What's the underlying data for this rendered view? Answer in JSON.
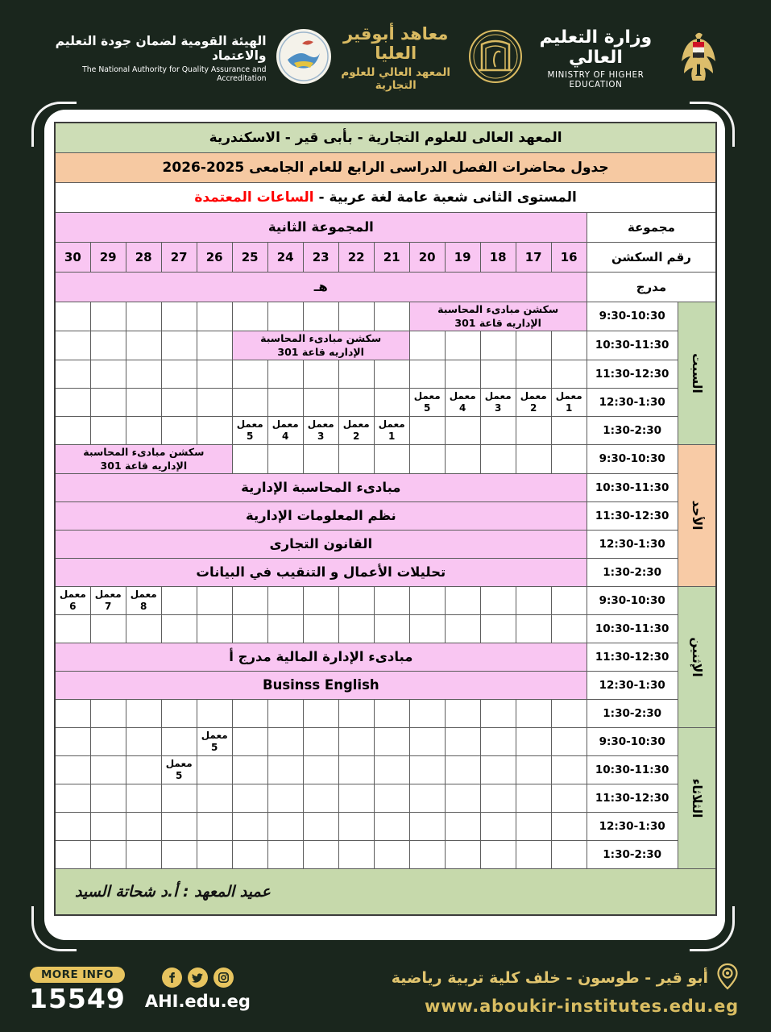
{
  "colors": {
    "background": "#1a261d",
    "pink_cell": "#f9c6f2",
    "green_band": "#cdddb6",
    "orange_band": "#f6c9a2",
    "day_green": "#c5dab0",
    "day_orange": "#f8cba6",
    "gold": "#d9ba62",
    "highlight_red": "#fe0000"
  },
  "header": {
    "naqaae": {
      "title_ar": "الهيئة القومية لضمان جودة التعليم والاعتماد",
      "title_en": "The National Authority for Quality Assurance and Accreditation"
    },
    "institute": {
      "title_ar": "معاهد أبوقير العليا",
      "subtitle_ar": "المعهد العالي للعلوم التجارية"
    },
    "ministry": {
      "title_ar": "وزارة التعليم العالي",
      "title_en": "MINISTRY OF HIGHER EDUCATION"
    }
  },
  "document": {
    "title1": "المعهد العالى للعلوم التجارية - بأبى قير - الاسكندرية",
    "title2": "جدول  محاضرات الفصل الدراسى الرابع  للعام الجامعى 2025-2026",
    "title3_main": "المستوى الثانى  شعبة عامة لغة عربية - ",
    "title3_highlight": "الساعات المعتمدة",
    "group_label": "مجموعة",
    "group_value": "المجموعة الثانية",
    "section_label": "رقم السكشن",
    "sections": [
      "16",
      "17",
      "18",
      "19",
      "20",
      "21",
      "22",
      "23",
      "24",
      "25",
      "26",
      "27",
      "28",
      "29",
      "30"
    ],
    "hall_label": "مدرج",
    "hall_value": "هـ",
    "signature": "عميد المعهد : أ.د شحاتة السيد"
  },
  "schedule": {
    "times": [
      "9:30-10:30",
      "10:30-11:30",
      "11:30-12:30",
      "12:30-1:30",
      "1:30-2:30"
    ],
    "days": [
      {
        "name": "السبت",
        "color": "green",
        "rows": [
          [
            {
              "t": "pink",
              "span": 5,
              "text": "سكشن مبادىء المحاسبة الإداريه قاعة 301"
            },
            {
              "t": "e",
              "n": 10
            }
          ],
          [
            {
              "t": "e",
              "n": 5
            },
            {
              "t": "pink",
              "span": 5,
              "text": "سكشن مبادىء المحاسبة الإداريه قاعة 301"
            },
            {
              "t": "e",
              "n": 5
            }
          ],
          [
            {
              "t": "e",
              "n": 15
            }
          ],
          [
            {
              "t": "lab",
              "label": "معمل",
              "num": "1"
            },
            {
              "t": "lab",
              "label": "معمل",
              "num": "2"
            },
            {
              "t": "lab",
              "label": "معمل",
              "num": "3"
            },
            {
              "t": "lab",
              "label": "معمل",
              "num": "4"
            },
            {
              "t": "lab",
              "label": "معمل",
              "num": "5"
            },
            {
              "t": "e",
              "n": 10
            }
          ],
          [
            {
              "t": "e",
              "n": 5
            },
            {
              "t": "lab",
              "label": "معمل",
              "num": "1"
            },
            {
              "t": "lab",
              "label": "معمل",
              "num": "2"
            },
            {
              "t": "lab",
              "label": "معمل",
              "num": "3"
            },
            {
              "t": "lab",
              "label": "معمل",
              "num": "4"
            },
            {
              "t": "lab",
              "label": "معمل",
              "num": "5"
            },
            {
              "t": "e",
              "n": 5
            }
          ]
        ]
      },
      {
        "name": "الأحد",
        "color": "orange",
        "rows": [
          [
            {
              "t": "e",
              "n": 10
            },
            {
              "t": "pink",
              "span": 5,
              "text": "سكشن مبادىء المحاسبة الإداريه قاعة 301"
            }
          ],
          [
            {
              "t": "pink",
              "span": 15,
              "text": "مبادىء المحاسبة الإدارية"
            }
          ],
          [
            {
              "t": "pink",
              "span": 15,
              "text": "نظم المعلومات الإدارية"
            }
          ],
          [
            {
              "t": "pink",
              "span": 15,
              "text": "القانون التجارى"
            }
          ],
          [
            {
              "t": "pink",
              "span": 15,
              "text": "تحليلات الأعمال و التنقيب في البيانات"
            }
          ]
        ]
      },
      {
        "name": "الإثنين",
        "color": "green",
        "rows": [
          [
            {
              "t": "e",
              "n": 12
            },
            {
              "t": "lab",
              "label": "معمل",
              "num": "8"
            },
            {
              "t": "lab",
              "label": "معمل",
              "num": "7"
            },
            {
              "t": "lab",
              "label": "معمل",
              "num": "6"
            }
          ],
          [
            {
              "t": "e",
              "n": 15
            }
          ],
          [
            {
              "t": "pink",
              "span": 15,
              "text": "مبادىء الإدارة المالية  مدرج أ"
            }
          ],
          [
            {
              "t": "pink",
              "span": 15,
              "text": "Businss English"
            }
          ],
          [
            {
              "t": "e",
              "n": 15
            }
          ]
        ]
      },
      {
        "name": "الثلاثاء",
        "color": "green",
        "rows": [
          [
            {
              "t": "e",
              "n": 10
            },
            {
              "t": "lab",
              "label": "معمل",
              "num": "5"
            },
            {
              "t": "e",
              "n": 4
            }
          ],
          [
            {
              "t": "e",
              "n": 11
            },
            {
              "t": "lab",
              "label": "معمل",
              "num": "5"
            },
            {
              "t": "e",
              "n": 3
            }
          ],
          [
            {
              "t": "e",
              "n": 15
            }
          ],
          [
            {
              "t": "e",
              "n": 15
            }
          ],
          [
            {
              "t": "e",
              "n": 15
            }
          ]
        ]
      }
    ]
  },
  "footer": {
    "more_info": "MORE INFO",
    "hotline": "15549",
    "site": "AHI.edu.eg",
    "address_ar": "أبو قير - طوسون - خلف كلية تربية رياضية",
    "website": "www.aboukir-institutes.edu.eg",
    "social": [
      "facebook",
      "twitter",
      "instagram"
    ]
  }
}
